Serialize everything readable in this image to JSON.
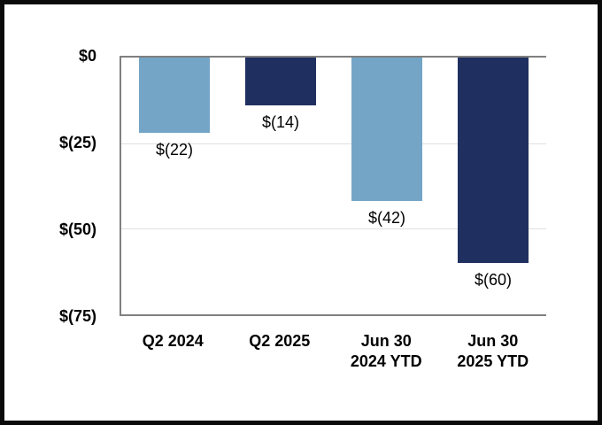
{
  "chart_data": {
    "type": "bar",
    "categories": [
      "Q2 2024",
      "Q2 2025",
      "Jun 30 2024 YTD",
      "Jun 30 2025 YTD"
    ],
    "values": [
      -22,
      -14,
      -42,
      -60
    ],
    "data_labels": [
      "$(22)",
      "$(14)",
      "$(42)",
      "$(60)"
    ],
    "bar_colors": [
      "#74A5C7",
      "#1F3060",
      "#74A5C7",
      "#1F3060"
    ],
    "x_labels": [
      {
        "line1": "Q2 2024",
        "line2": ""
      },
      {
        "line1": "Q2 2025",
        "line2": ""
      },
      {
        "line1": "Jun 30",
        "line2": "2024 YTD"
      },
      {
        "line1": "Jun 30",
        "line2": "2025 YTD"
      }
    ],
    "y_ticks": [
      "$0",
      "$(25)",
      "$(50)",
      "$(75)"
    ],
    "y_tick_values": [
      0,
      -25,
      -50,
      -75
    ],
    "gridline_values": [
      -25,
      -50
    ],
    "ylim": [
      -75,
      0
    ],
    "title": "",
    "xlabel": "",
    "ylabel": "",
    "grid": true,
    "legend": false
  },
  "colors": {
    "bar_light_blue": "#74A5C7",
    "bar_navy": "#1F3060",
    "axis_line": "#808080",
    "gridline": "#E0E0E0",
    "text": "#000000",
    "background": "#FFFFFF",
    "frame_border": "#0A0A0A"
  }
}
